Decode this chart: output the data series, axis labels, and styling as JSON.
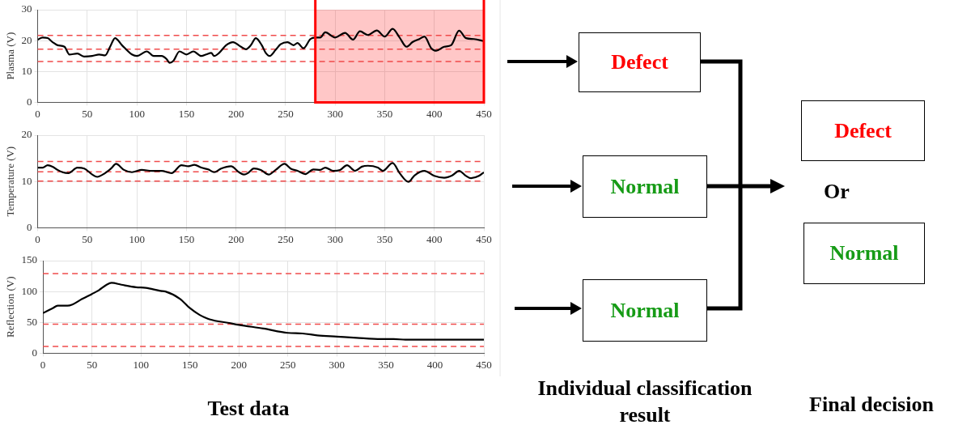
{
  "chart_data": [
    {
      "type": "line",
      "ylabel": "Plasma (V)",
      "xlim": [
        0,
        450
      ],
      "ylim": [
        0,
        30
      ],
      "xticks": [
        0,
        50,
        100,
        150,
        200,
        250,
        300,
        350,
        400,
        450
      ],
      "yticks": [
        0,
        10,
        20,
        30
      ],
      "grid": true,
      "marker": "none",
      "line_style": "solid",
      "color": "#000000",
      "x": [
        0,
        5,
        10,
        15,
        20,
        27,
        32,
        40,
        47,
        55,
        62,
        68,
        73,
        78,
        85,
        95,
        100,
        110,
        117,
        125,
        130,
        133,
        137,
        143,
        150,
        157,
        165,
        170,
        175,
        178,
        183,
        190,
        197,
        205,
        210,
        215,
        220,
        226,
        230,
        234,
        240,
        245,
        252,
        258,
        262,
        268,
        275,
        280,
        285,
        290,
        300,
        310,
        318,
        325,
        333,
        342,
        350,
        358,
        365,
        372,
        378,
        385,
        390,
        397,
        402,
        410,
        417,
        425,
        432,
        440,
        450
      ],
      "values": [
        20.3,
        21,
        20.8,
        19.5,
        18.5,
        18,
        15.5,
        15.8,
        14.8,
        15,
        15.5,
        15.2,
        18,
        20.8,
        18.5,
        15.5,
        15,
        16.5,
        15,
        15,
        14,
        12.8,
        13.5,
        16.5,
        15.5,
        16.5,
        15,
        15.5,
        16,
        15,
        16,
        18.5,
        19.5,
        18,
        17.2,
        18.5,
        20.8,
        18.5,
        16,
        15,
        17,
        18.8,
        19.5,
        18.5,
        19.2,
        17.5,
        20.5,
        21,
        21,
        22.7,
        21,
        22.5,
        20.3,
        23,
        21.8,
        23.3,
        21.3,
        23.8,
        21,
        18,
        19.5,
        20.5,
        21.3,
        17.5,
        16.7,
        18,
        18.5,
        23.2,
        20.8,
        20.5,
        19.8
      ],
      "ref_lines": [
        {
          "axis": "y",
          "value": 21.7,
          "color": "#f04b4b",
          "line_style": "dashed"
        },
        {
          "axis": "y",
          "value": 17.2,
          "color": "#f04b4b",
          "line_style": "dashed"
        },
        {
          "axis": "y",
          "value": 13.2,
          "color": "#f04b4b",
          "line_style": "dashed"
        }
      ],
      "bands": [
        {
          "axis": "x",
          "from": 280,
          "to": 450,
          "color": "#ff0000"
        }
      ]
    },
    {
      "type": "line",
      "ylabel": "Temperature (V)",
      "xlim": [
        0,
        450
      ],
      "ylim": [
        0,
        20
      ],
      "xticks": [
        0,
        50,
        100,
        150,
        200,
        250,
        300,
        350,
        400,
        450
      ],
      "yticks": [
        0,
        10,
        20
      ],
      "grid": true,
      "marker": "none",
      "line_style": "solid",
      "color": "#000000",
      "x": [
        0,
        5,
        10,
        15,
        20,
        25,
        31,
        40,
        47,
        55,
        60,
        68,
        74,
        79,
        87,
        95,
        105,
        115,
        125,
        135,
        145,
        152,
        158,
        165,
        172,
        178,
        185,
        195,
        203,
        208,
        212,
        218,
        225,
        233,
        240,
        249,
        255,
        262,
        270,
        278,
        285,
        290,
        298,
        305,
        312,
        320,
        327,
        333,
        343,
        348,
        358,
        365,
        374,
        380,
        390,
        400,
        410,
        418,
        425,
        432,
        437,
        445,
        450
      ],
      "values": [
        13,
        13,
        13.5,
        13.2,
        12.5,
        12,
        11.8,
        13,
        12.8,
        11.5,
        11,
        11.8,
        12.8,
        13.8,
        12.5,
        12,
        12.5,
        12.3,
        12.3,
        11.8,
        13.5,
        13.3,
        13.6,
        13,
        12.6,
        12,
        12.8,
        13.3,
        12,
        11.5,
        11.8,
        12.8,
        12.5,
        11.5,
        12.5,
        13.8,
        12.8,
        12.3,
        11.6,
        12.6,
        12.5,
        13,
        12.3,
        12.5,
        13.5,
        12.3,
        13.2,
        13.4,
        13,
        12.3,
        14,
        11.8,
        9.9,
        11.3,
        12.3,
        11.2,
        10.8,
        11.3,
        12.3,
        11.2,
        10.7,
        11.2,
        12
      ],
      "ref_lines": [
        {
          "axis": "y",
          "value": 14.3,
          "color": "#f04b4b",
          "line_style": "dashed"
        },
        {
          "axis": "y",
          "value": 12.1,
          "color": "#f04b4b",
          "line_style": "dashed"
        },
        {
          "axis": "y",
          "value": 10.1,
          "color": "#f04b4b",
          "line_style": "dashed"
        }
      ]
    },
    {
      "type": "line",
      "ylabel": "Reflection (V)",
      "xlim": [
        0,
        450
      ],
      "ylim": [
        0,
        150
      ],
      "xticks": [
        0,
        50,
        100,
        150,
        200,
        250,
        300,
        350,
        400,
        450
      ],
      "yticks": [
        0,
        50,
        100,
        150
      ],
      "grid": true,
      "marker": "none",
      "line_style": "solid",
      "color": "#000000",
      "x": [
        0,
        10,
        15,
        25,
        30,
        40,
        50,
        57,
        65,
        70,
        80,
        95,
        105,
        120,
        125,
        140,
        150,
        160,
        170,
        190,
        200,
        225,
        250,
        265,
        280,
        300,
        320,
        345,
        358,
        370,
        400,
        450
      ],
      "values": [
        65,
        73,
        77,
        77,
        79,
        88,
        96,
        102,
        111,
        114,
        111,
        107,
        106,
        101,
        100,
        88,
        73,
        62,
        55,
        49,
        46,
        40,
        33,
        32,
        29,
        27,
        25,
        23,
        23,
        22,
        22,
        22
      ],
      "ref_lines": [
        {
          "axis": "y",
          "value": 129,
          "color": "#f04b4b",
          "line_style": "dashed"
        },
        {
          "axis": "y",
          "value": 47,
          "color": "#f04b4b",
          "line_style": "dashed"
        },
        {
          "axis": "y",
          "value": 11,
          "color": "#f04b4b",
          "line_style": "dashed"
        }
      ]
    },
    {
      "type": "other",
      "annotations": [
        "Defect",
        "Normal",
        "Normal",
        "Defect",
        "Or",
        "Normal",
        "Test data",
        "Individual classification result",
        "Final decision"
      ],
      "colors": [
        "#ff0000",
        "#169b16",
        "#169b16",
        "#ff0000",
        "#000000",
        "#169b16",
        "#000000",
        "#000000",
        "#000000"
      ]
    }
  ]
}
